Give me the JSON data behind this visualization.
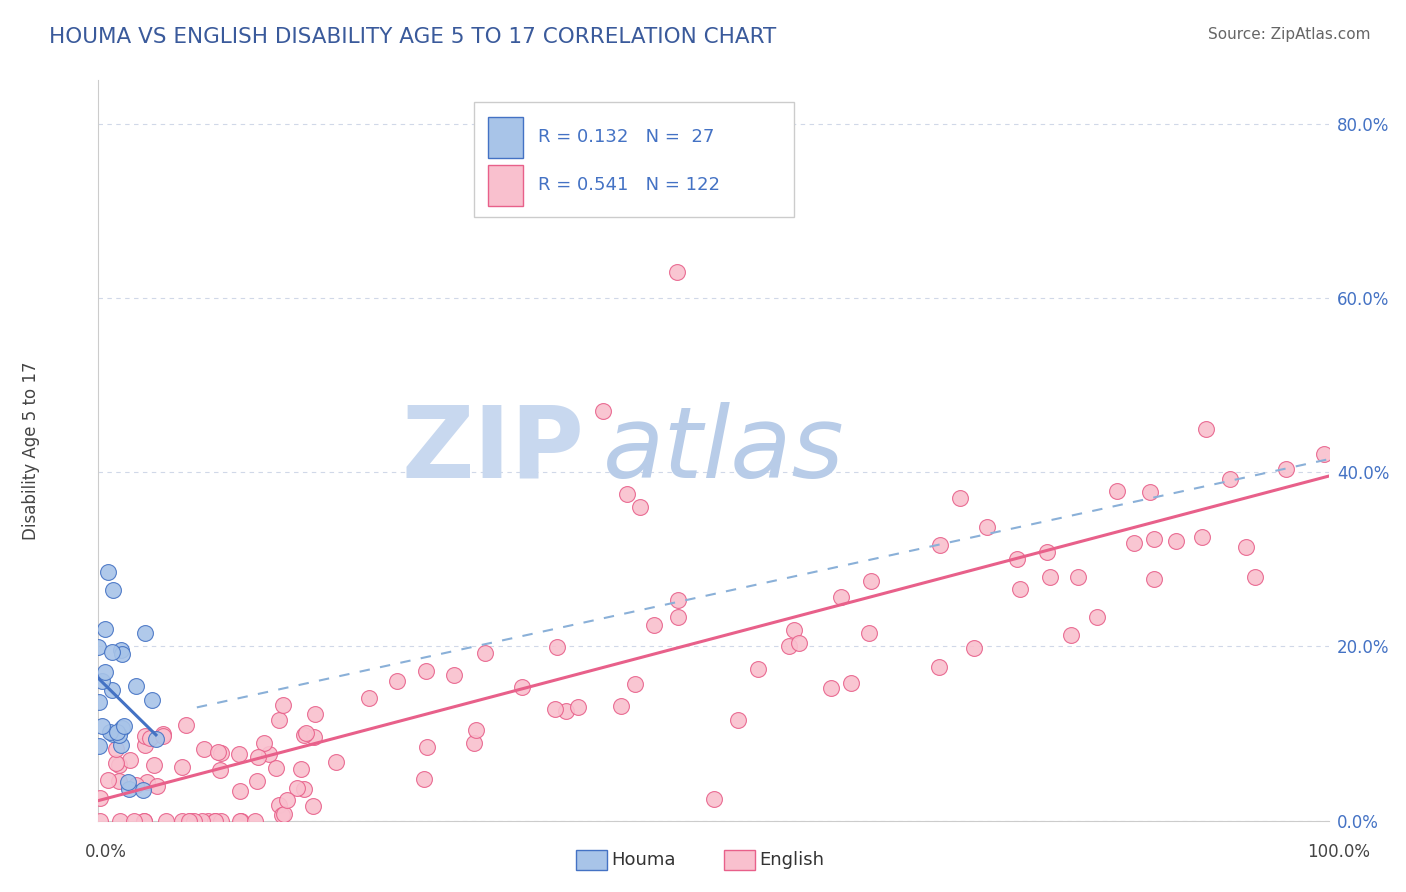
{
  "title": "HOUMA VS ENGLISH DISABILITY AGE 5 TO 17 CORRELATION CHART",
  "source": "Source: ZipAtlas.com",
  "ylabel": "Disability Age 5 to 17",
  "houma_R": 0.132,
  "houma_N": 27,
  "english_R": 0.541,
  "english_N": 122,
  "houma_color": "#a8c4e8",
  "houma_edge_color": "#4472c4",
  "english_color": "#f9c0ce",
  "english_edge_color": "#e8608a",
  "english_line_color": "#e8608a",
  "houma_line_color": "#4472c4",
  "dashed_line_color": "#8ab0d8",
  "background_color": "#ffffff",
  "grid_color": "#d0d8e8",
  "title_color": "#3a5a9b",
  "source_color": "#666666",
  "watermark_zip_color": "#c8d8ef",
  "watermark_atlas_color": "#b8cce8",
  "ytick_color": "#4472c4",
  "xtick_color": "#444444",
  "ylim": [
    0.0,
    0.85
  ],
  "xlim": [
    0.0,
    1.0
  ],
  "ytick_vals": [
    0.0,
    0.2,
    0.4,
    0.6,
    0.8
  ],
  "ytick_labels": [
    "0.0%",
    "20.0%",
    "40.0%",
    "60.0%",
    "80.0%"
  ]
}
